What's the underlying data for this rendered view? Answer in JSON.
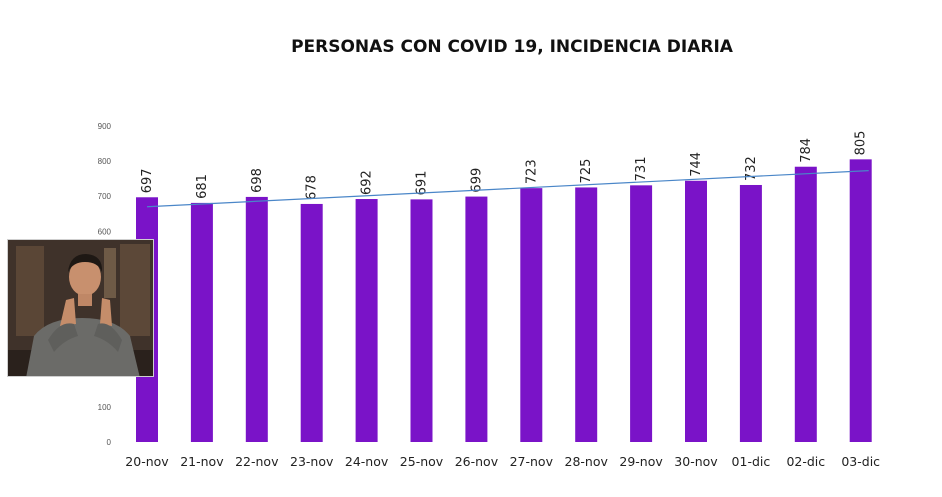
{
  "chart_data": {
    "type": "bar",
    "title": "PERSONAS CON COVID 19, INCIDENCIA DIARIA",
    "categories": [
      "20-nov",
      "21-nov",
      "22-nov",
      "23-nov",
      "24-nov",
      "25-nov",
      "26-nov",
      "27-nov",
      "28-nov",
      "29-nov",
      "30-nov",
      "01-dic",
      "02-dic",
      "03-dic"
    ],
    "values": [
      697,
      681,
      698,
      678,
      692,
      691,
      699,
      723,
      725,
      731,
      744,
      732,
      784,
      805
    ],
    "ylim": [
      0,
      900
    ],
    "yticks": [
      "0",
      "100",
      "200",
      "300",
      "400",
      "500",
      "600",
      "700",
      "800",
      "900"
    ],
    "trendline": {
      "type": "linear",
      "start": 670,
      "end": 773
    },
    "grid": false,
    "legend": "none"
  },
  "colors": {
    "bar": "#7a13c8",
    "trendline": "#4a86c8"
  },
  "overlay": {
    "icon": "sign-language-interpreter-video"
  }
}
